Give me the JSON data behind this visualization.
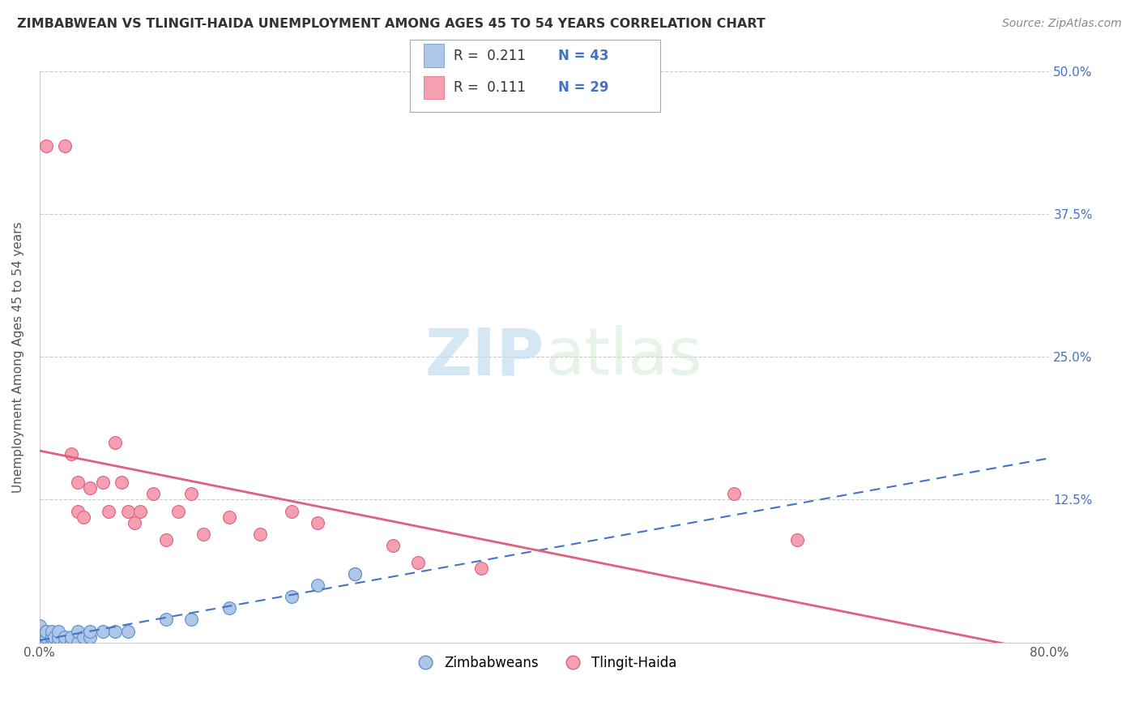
{
  "title": "ZIMBABWEAN VS TLINGIT-HAIDA UNEMPLOYMENT AMONG AGES 45 TO 54 YEARS CORRELATION CHART",
  "source": "Source: ZipAtlas.com",
  "ylabel": "Unemployment Among Ages 45 to 54 years",
  "xlim": [
    0.0,
    0.8
  ],
  "ylim": [
    0.0,
    0.5
  ],
  "xticks": [
    0.0,
    0.2,
    0.4,
    0.6,
    0.8
  ],
  "xticklabels": [
    "0.0%",
    "",
    "",
    "",
    "80.0%"
  ],
  "yticks": [
    0.0,
    0.125,
    0.25,
    0.375,
    0.5
  ],
  "yticklabels_right": [
    "",
    "12.5%",
    "25.0%",
    "37.5%",
    "50.0%"
  ],
  "zimbabwean_color": "#aec6e8",
  "tlingit_color": "#f4a0b0",
  "zimbabwean_edge": "#5b8fc9",
  "tlingit_edge": "#e06080",
  "trend_zimbabwean_color": "#4472c4",
  "trend_tlingit_color": "#e06080",
  "r_zimbabwean": "0.211",
  "n_zimbabwean": "43",
  "r_tlingit": "0.111",
  "n_tlingit": "29",
  "legend_zimbabweans": "Zimbabweans",
  "legend_tlingit": "Tlingit-Haida",
  "zimbabwean_x": [
    0.0,
    0.0,
    0.0,
    0.0,
    0.0,
    0.0,
    0.0,
    0.0,
    0.0,
    0.0,
    0.005,
    0.005,
    0.005,
    0.005,
    0.005,
    0.005,
    0.01,
    0.01,
    0.01,
    0.01,
    0.012,
    0.012,
    0.015,
    0.015,
    0.015,
    0.02,
    0.02,
    0.025,
    0.025,
    0.03,
    0.03,
    0.035,
    0.04,
    0.04,
    0.05,
    0.06,
    0.07,
    0.1,
    0.12,
    0.15,
    0.2,
    0.22,
    0.25
  ],
  "zimbabwean_y": [
    0.0,
    0.0,
    0.0,
    0.0,
    0.0,
    0.005,
    0.005,
    0.01,
    0.01,
    0.015,
    0.0,
    0.0,
    0.005,
    0.005,
    0.01,
    0.01,
    0.0,
    0.005,
    0.005,
    0.01,
    0.0,
    0.005,
    0.0,
    0.005,
    0.01,
    0.0,
    0.005,
    0.0,
    0.005,
    0.0,
    0.01,
    0.005,
    0.005,
    0.01,
    0.01,
    0.01,
    0.01,
    0.02,
    0.02,
    0.03,
    0.04,
    0.05,
    0.06
  ],
  "tlingit_x": [
    0.005,
    0.02,
    0.025,
    0.03,
    0.03,
    0.035,
    0.04,
    0.05,
    0.055,
    0.06,
    0.065,
    0.07,
    0.075,
    0.08,
    0.09,
    0.1,
    0.11,
    0.12,
    0.13,
    0.15,
    0.175,
    0.2,
    0.22,
    0.25,
    0.28,
    0.3,
    0.35,
    0.55,
    0.6
  ],
  "tlingit_y": [
    0.435,
    0.435,
    0.165,
    0.14,
    0.115,
    0.11,
    0.135,
    0.14,
    0.115,
    0.175,
    0.14,
    0.115,
    0.105,
    0.115,
    0.13,
    0.09,
    0.115,
    0.13,
    0.095,
    0.11,
    0.095,
    0.115,
    0.105,
    0.06,
    0.085,
    0.07,
    0.065,
    0.13,
    0.09
  ]
}
